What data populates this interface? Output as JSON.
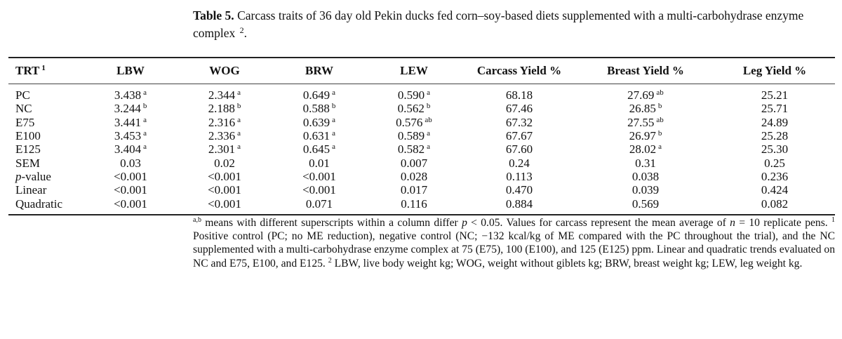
{
  "caption": {
    "label": "Table 5.",
    "text": "Carcass traits of 36 day old Pekin ducks fed corn–soy-based diets supplemented with a multi-carbohydrase enzyme complex",
    "sup": "2",
    "end": "."
  },
  "table": {
    "headers": [
      {
        "text": "TRT",
        "sup": "1"
      },
      {
        "text": "LBW"
      },
      {
        "text": "WOG"
      },
      {
        "text": "BRW"
      },
      {
        "text": "LEW"
      },
      {
        "text": "Carcass Yield %"
      },
      {
        "text": "Breast Yield %"
      },
      {
        "text": "Leg Yield %"
      }
    ],
    "rows": [
      {
        "label": "PC",
        "cells": [
          {
            "v": "3.438",
            "s": "a"
          },
          {
            "v": "2.344",
            "s": "a"
          },
          {
            "v": "0.649",
            "s": "a"
          },
          {
            "v": "0.590",
            "s": "a"
          },
          {
            "v": "68.18"
          },
          {
            "v": "27.69",
            "s": "ab"
          },
          {
            "v": "25.21"
          }
        ]
      },
      {
        "label": "NC",
        "cells": [
          {
            "v": "3.244",
            "s": "b"
          },
          {
            "v": "2.188",
            "s": "b"
          },
          {
            "v": "0.588",
            "s": "b"
          },
          {
            "v": "0.562",
            "s": "b"
          },
          {
            "v": "67.46"
          },
          {
            "v": "26.85",
            "s": "b"
          },
          {
            "v": "25.71"
          }
        ]
      },
      {
        "label": "E75",
        "cells": [
          {
            "v": "3.441",
            "s": "a"
          },
          {
            "v": "2.316",
            "s": "a"
          },
          {
            "v": "0.639",
            "s": "a"
          },
          {
            "v": "0.576",
            "s": "ab"
          },
          {
            "v": "67.32"
          },
          {
            "v": "27.55",
            "s": "ab"
          },
          {
            "v": "24.89"
          }
        ]
      },
      {
        "label": "E100",
        "cells": [
          {
            "v": "3.453",
            "s": "a"
          },
          {
            "v": "2.336",
            "s": "a"
          },
          {
            "v": "0.631",
            "s": "a"
          },
          {
            "v": "0.589",
            "s": "a"
          },
          {
            "v": "67.67"
          },
          {
            "v": "26.97",
            "s": "b"
          },
          {
            "v": "25.28"
          }
        ]
      },
      {
        "label": "E125",
        "cells": [
          {
            "v": "3.404",
            "s": "a"
          },
          {
            "v": "2.301",
            "s": "a"
          },
          {
            "v": "0.645",
            "s": "a"
          },
          {
            "v": "0.582",
            "s": "a"
          },
          {
            "v": "67.60"
          },
          {
            "v": "28.02",
            "s": "a"
          },
          {
            "v": "25.30"
          }
        ]
      },
      {
        "label": "SEM",
        "cells": [
          {
            "v": "0.03"
          },
          {
            "v": "0.02"
          },
          {
            "v": "0.01"
          },
          {
            "v": "0.007"
          },
          {
            "v": "0.24"
          },
          {
            "v": "0.31"
          },
          {
            "v": "0.25"
          }
        ]
      },
      {
        "label": "p-value",
        "italic_prefix": "p",
        "rest": "-value",
        "cells": [
          {
            "v": "<0.001"
          },
          {
            "v": "<0.001"
          },
          {
            "v": "<0.001"
          },
          {
            "v": "0.028"
          },
          {
            "v": "0.113"
          },
          {
            "v": "0.038"
          },
          {
            "v": "0.236"
          }
        ]
      },
      {
        "label": "Linear",
        "cells": [
          {
            "v": "<0.001"
          },
          {
            "v": "<0.001"
          },
          {
            "v": "<0.001"
          },
          {
            "v": "0.017"
          },
          {
            "v": "0.470"
          },
          {
            "v": "0.039"
          },
          {
            "v": "0.424"
          }
        ]
      },
      {
        "label": "Quadratic",
        "cells": [
          {
            "v": "<0.001"
          },
          {
            "v": "<0.001"
          },
          {
            "v": "0.071"
          },
          {
            "v": "0.116"
          },
          {
            "v": "0.884"
          },
          {
            "v": "0.569"
          },
          {
            "v": "0.082"
          }
        ]
      }
    ]
  },
  "footnote": {
    "sup_ab": "a,b",
    "t1": " means with different superscripts within a column differ ",
    "p": "p",
    "t2": " < 0.05. Values for carcass represent the mean average of ",
    "n": "n",
    "t3": " = 10 replicate pens. ",
    "sup1": "1",
    "t4": " Positive control (PC; no ME reduction), negative control (NC; −132 kcal/kg of ME compared with the PC throughout the trial), and the NC supplemented with a multi-carbohydrase enzyme complex at 75 (E75), 100 (E100), and 125 (E125) ppm. Linear and quadratic trends evaluated on NC and E75, E100, and E125. ",
    "sup2": "2",
    "t5": " LBW, live body weight kg; WOG, weight without giblets kg; BRW, breast weight kg; LEW, leg weight kg."
  }
}
